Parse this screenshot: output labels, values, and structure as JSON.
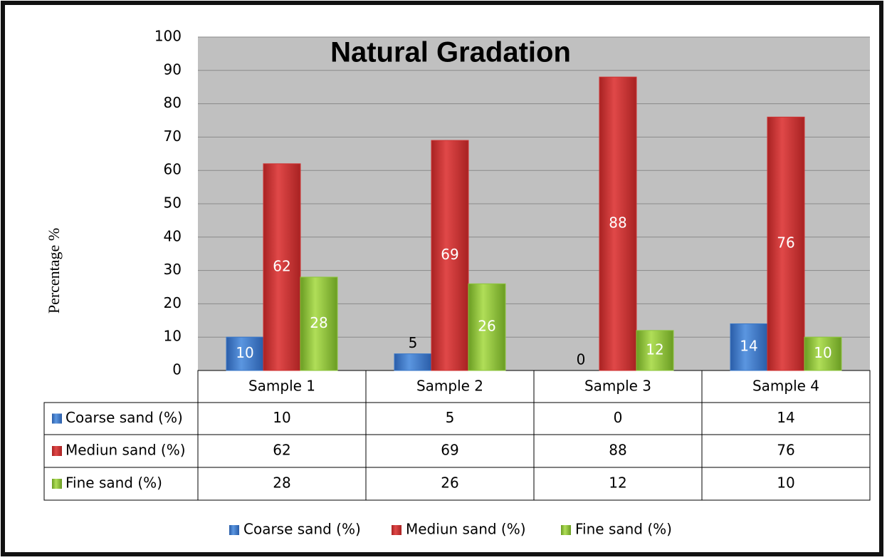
{
  "chart_data": {
    "type": "bar",
    "title": "Natural Gradation",
    "y_label": "Percentage %",
    "categories": [
      "Sample 1",
      "Sample 2",
      "Sample 3",
      "Sample 4"
    ],
    "series": [
      {
        "name": "Coarse sand (%)",
        "color": "#3b78c8",
        "values": [
          10,
          5,
          0,
          14
        ]
      },
      {
        "name": "Mediun sand (%)",
        "color": "#cf3232",
        "values": [
          62,
          69,
          88,
          76
        ]
      },
      {
        "name": "Fine sand (%)",
        "color": "#8dc63c",
        "values": [
          28,
          26,
          12,
          10
        ]
      }
    ],
    "ylim": [
      0,
      100
    ],
    "yticks": [
      0,
      10,
      20,
      30,
      40,
      50,
      60,
      70,
      80,
      90,
      100
    ],
    "grid": true
  }
}
